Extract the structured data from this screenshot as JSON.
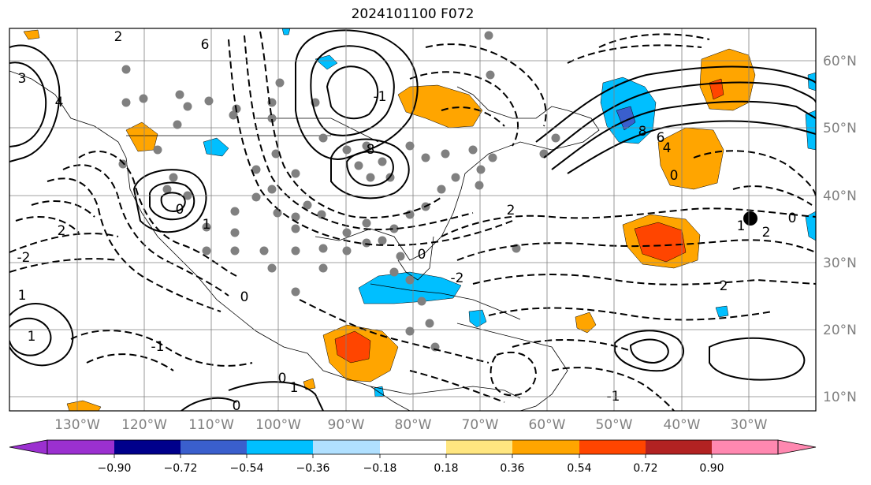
{
  "title": "2024101100 F072",
  "map": {
    "projection": "plate carree",
    "lon_range": [
      -140,
      -18
    ],
    "lat_range": [
      7,
      65
    ],
    "lon_labels": [
      "130°W",
      "120°W",
      "110°W",
      "100°W",
      "90°W",
      "80°W",
      "70°W",
      "60°W",
      "50°W",
      "40°W",
      "30°W"
    ],
    "lat_labels": [
      "60°N",
      "50°N",
      "40°N",
      "30°N",
      "20°N",
      "10°N"
    ],
    "contour_labels": [
      "2",
      "6",
      "3",
      "4",
      "8",
      "0",
      "-1",
      "1",
      "-2",
      "2",
      "2",
      "0",
      "-2",
      "1",
      "-1",
      "0",
      "1",
      "0",
      "1",
      "0",
      "2",
      "6",
      "8",
      "4",
      "0",
      "1",
      "2",
      "-1",
      "0"
    ],
    "marker": "low-center dot near 36.5°N 31°W"
  },
  "colorbar": {
    "ticks": [
      "−0.90",
      "−0.72",
      "−0.54",
      "−0.36",
      "−0.18",
      "0.18",
      "0.36",
      "0.54",
      "0.72",
      "0.90"
    ],
    "colors": [
      "#9b30d0",
      "#00008b",
      "#3a5fcd",
      "#00bfff",
      "#b0e0ff",
      "#ffffff",
      "#ffe680",
      "#ffa500",
      "#ff4500",
      "#b22222",
      "#ff88b0"
    ]
  }
}
